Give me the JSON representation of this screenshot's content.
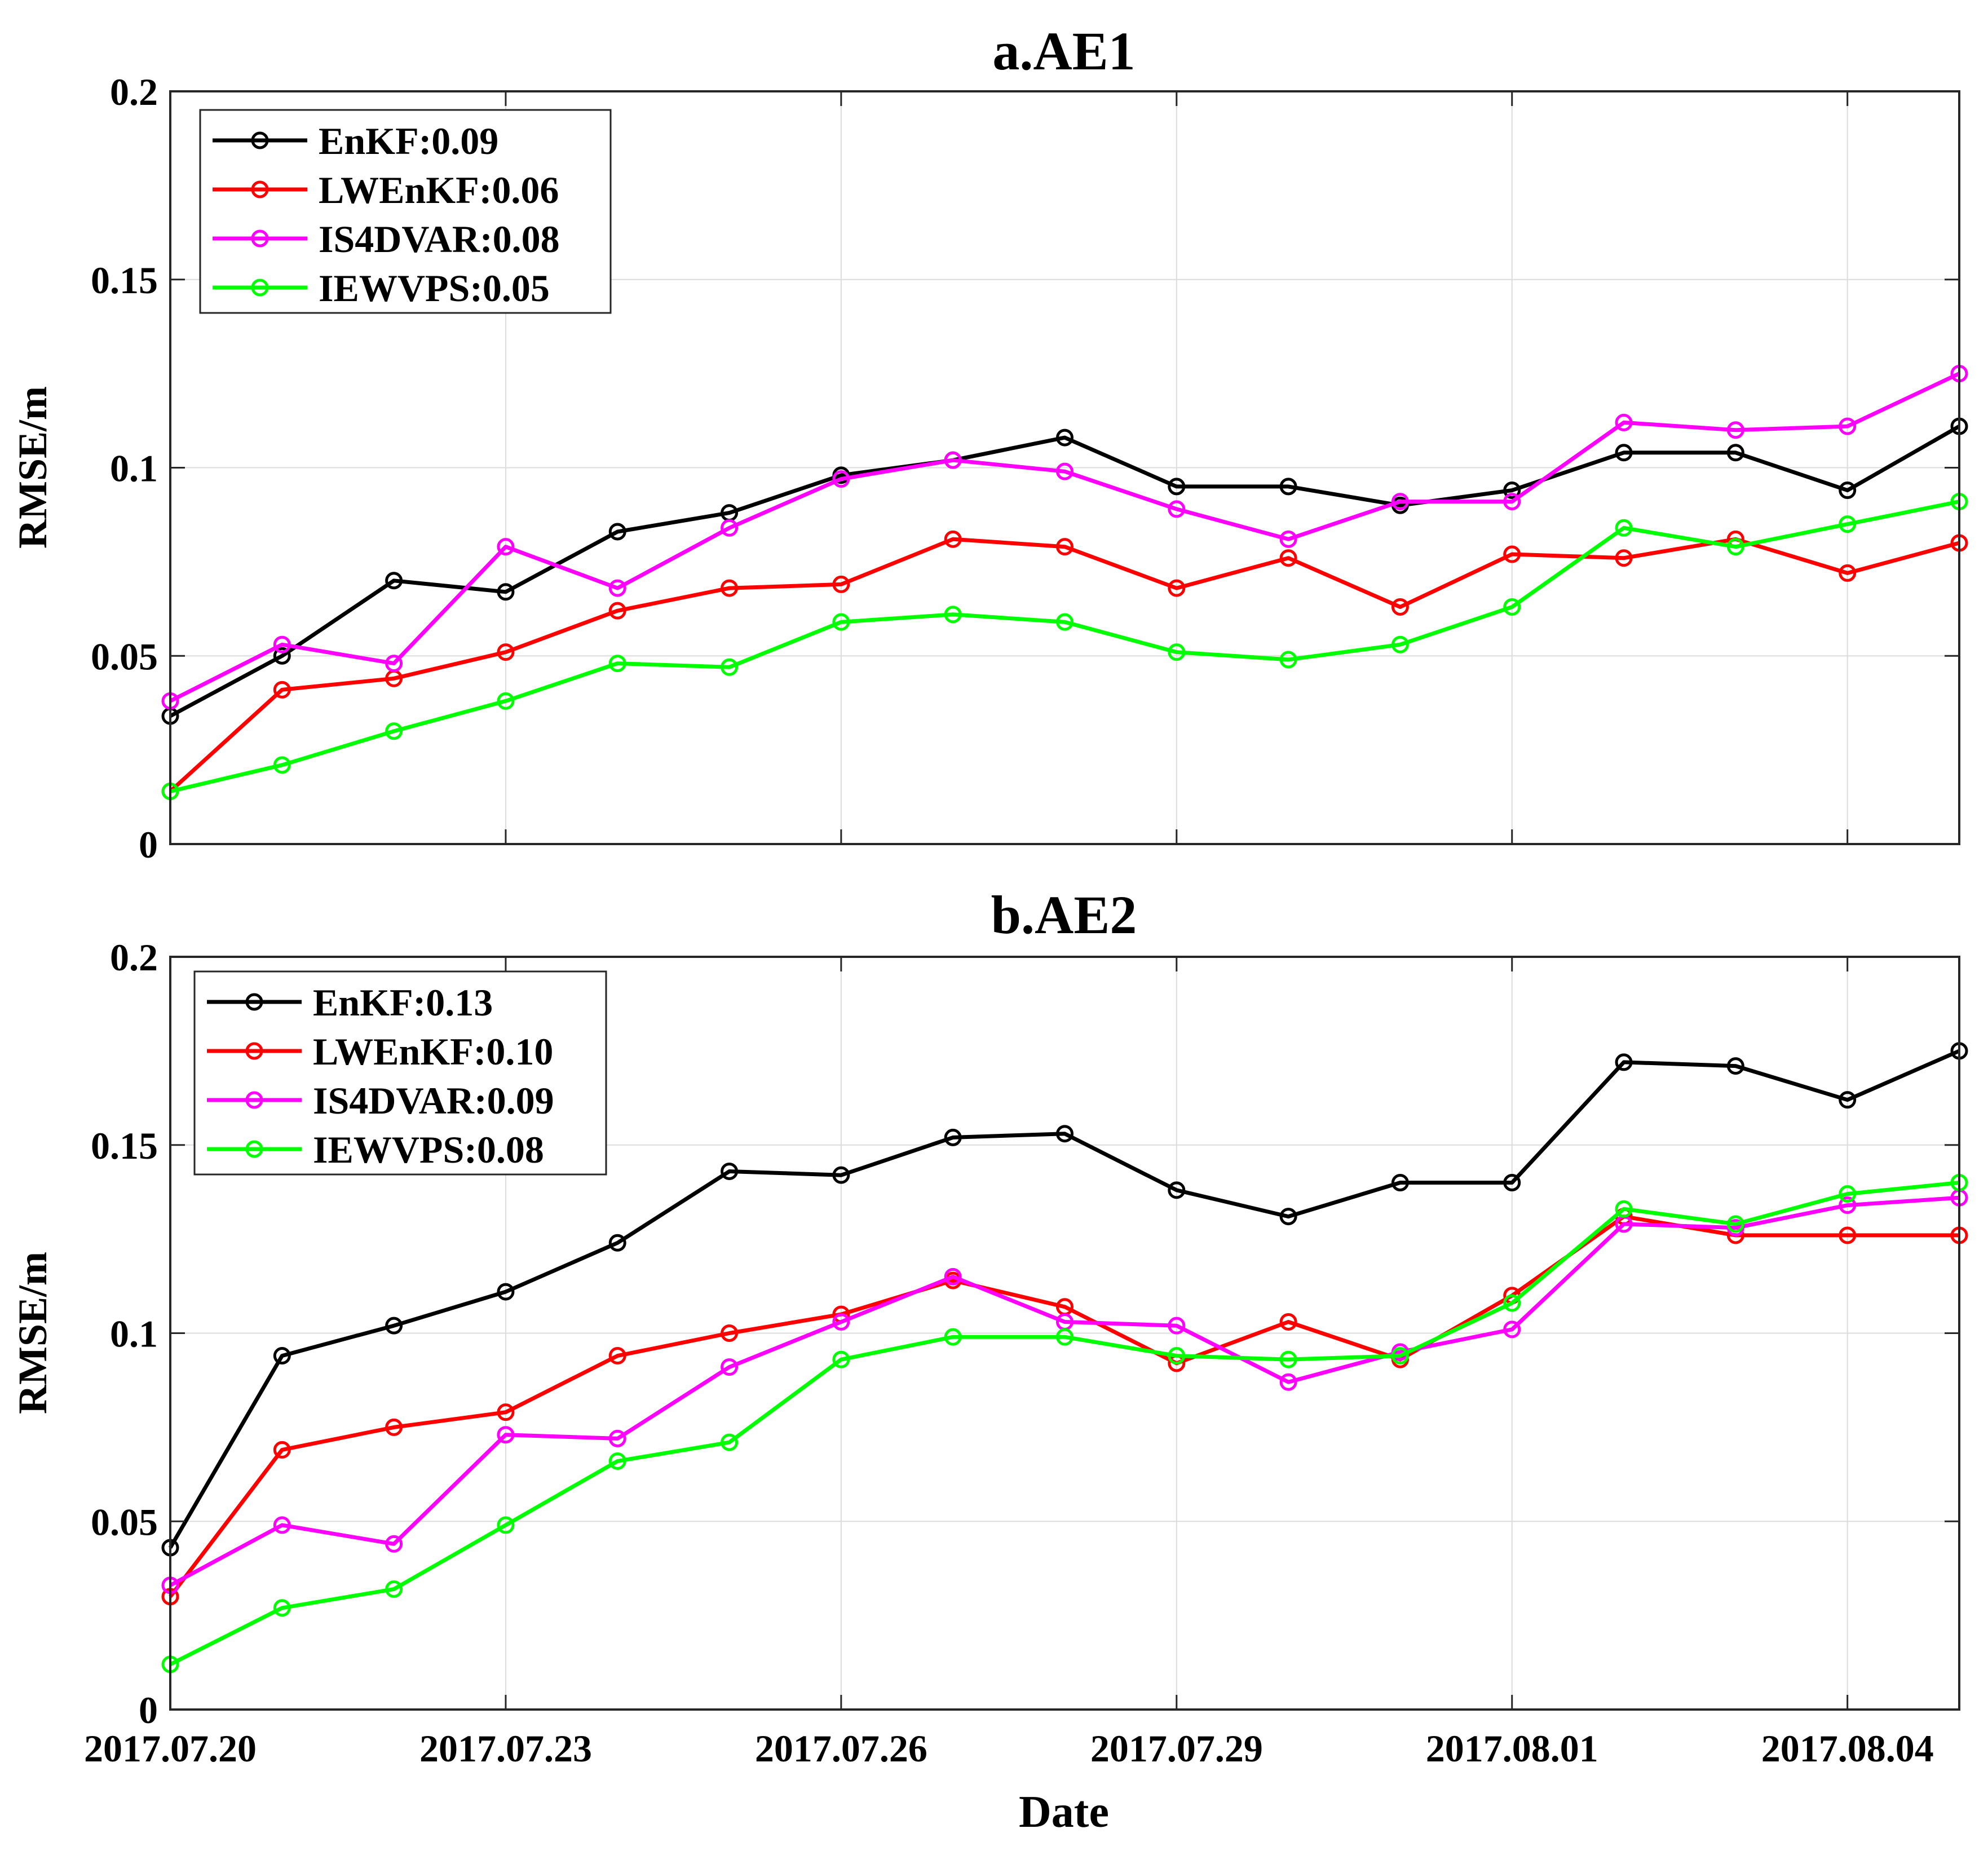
{
  "figure": {
    "xlabel": "Date",
    "xtick_labels": [
      "2017.07.20",
      "2017.07.23",
      "2017.07.26",
      "2017.07.29",
      "2017.08.01",
      "2017.08.04"
    ]
  },
  "colors": {
    "EnKF": "#000000",
    "LWEnKF": "#ff0000",
    "IS4DVAR": "#ff00ff",
    "IEWVPS": "#00ff00"
  },
  "chart_data": [
    {
      "type": "line",
      "title": "a.AE1",
      "xlabel": "",
      "ylabel": "RMSE/m",
      "ylim": [
        0,
        0.2
      ],
      "yticks": [
        0,
        0.05,
        0.1,
        0.15,
        0.2
      ],
      "ytick_labels": [
        "0",
        "0.05",
        "0.1",
        "0.15",
        "0.2"
      ],
      "grid": true,
      "legend_position": "top-left",
      "x": [
        "2017.07.20",
        "2017.07.21",
        "2017.07.22",
        "2017.07.23",
        "2017.07.24",
        "2017.07.25",
        "2017.07.26",
        "2017.07.27",
        "2017.07.28",
        "2017.07.29",
        "2017.07.30",
        "2017.07.31",
        "2017.08.01",
        "2017.08.02",
        "2017.08.03",
        "2017.08.04",
        "2017.08.05"
      ],
      "series": [
        {
          "key": "EnKF",
          "name": "EnKF:0.09",
          "values": [
            0.034,
            0.05,
            0.07,
            0.067,
            0.083,
            0.088,
            0.098,
            0.102,
            0.108,
            0.095,
            0.095,
            0.09,
            0.094,
            0.104,
            0.104,
            0.094,
            0.111
          ]
        },
        {
          "key": "LWEnKF",
          "name": "LWEnKF:0.06",
          "values": [
            0.014,
            0.041,
            0.044,
            0.051,
            0.062,
            0.068,
            0.069,
            0.081,
            0.079,
            0.068,
            0.076,
            0.063,
            0.077,
            0.076,
            0.081,
            0.072,
            0.08
          ]
        },
        {
          "key": "IS4DVAR",
          "name": "IS4DVAR:0.08",
          "values": [
            0.038,
            0.053,
            0.048,
            0.079,
            0.068,
            0.084,
            0.097,
            0.102,
            0.099,
            0.089,
            0.081,
            0.091,
            0.091,
            0.112,
            0.11,
            0.111,
            0.125
          ]
        },
        {
          "key": "IEWVPS",
          "name": "IEWVPS:0.05",
          "values": [
            0.014,
            0.021,
            0.03,
            0.038,
            0.048,
            0.047,
            0.059,
            0.061,
            0.059,
            0.051,
            0.049,
            0.053,
            0.063,
            0.084,
            0.079,
            0.085,
            0.091
          ]
        }
      ]
    },
    {
      "type": "line",
      "title": "b.AE2",
      "xlabel": "Date",
      "ylabel": "RMSE/m",
      "ylim": [
        0,
        0.2
      ],
      "yticks": [
        0,
        0.05,
        0.1,
        0.15,
        0.2
      ],
      "ytick_labels": [
        "0",
        "0.05",
        "0.1",
        "0.15",
        "0.2"
      ],
      "grid": true,
      "legend_position": "top-left",
      "x": [
        "2017.07.20",
        "2017.07.21",
        "2017.07.22",
        "2017.07.23",
        "2017.07.24",
        "2017.07.25",
        "2017.07.26",
        "2017.07.27",
        "2017.07.28",
        "2017.07.29",
        "2017.07.30",
        "2017.07.31",
        "2017.08.01",
        "2017.08.02",
        "2017.08.03",
        "2017.08.04",
        "2017.08.05"
      ],
      "series": [
        {
          "key": "EnKF",
          "name": "EnKF:0.13",
          "values": [
            0.043,
            0.094,
            0.102,
            0.111,
            0.124,
            0.143,
            0.142,
            0.152,
            0.153,
            0.138,
            0.131,
            0.14,
            0.14,
            0.172,
            0.171,
            0.162,
            0.175
          ]
        },
        {
          "key": "LWEnKF",
          "name": "LWEnKF:0.10",
          "values": [
            0.03,
            0.069,
            0.075,
            0.079,
            0.094,
            0.1,
            0.105,
            0.114,
            0.107,
            0.092,
            0.103,
            0.093,
            0.11,
            0.131,
            0.126,
            0.126,
            0.126
          ]
        },
        {
          "key": "IS4DVAR",
          "name": "IS4DVAR:0.09",
          "values": [
            0.033,
            0.049,
            0.044,
            0.073,
            0.072,
            0.091,
            0.103,
            0.115,
            0.103,
            0.102,
            0.087,
            0.095,
            0.101,
            0.129,
            0.128,
            0.134,
            0.136
          ]
        },
        {
          "key": "IEWVPS",
          "name": "IEWVPS:0.08",
          "values": [
            0.012,
            0.027,
            0.032,
            0.049,
            0.066,
            0.071,
            0.093,
            0.099,
            0.099,
            0.094,
            0.093,
            0.094,
            0.108,
            0.133,
            0.129,
            0.137,
            0.14
          ]
        }
      ]
    }
  ]
}
